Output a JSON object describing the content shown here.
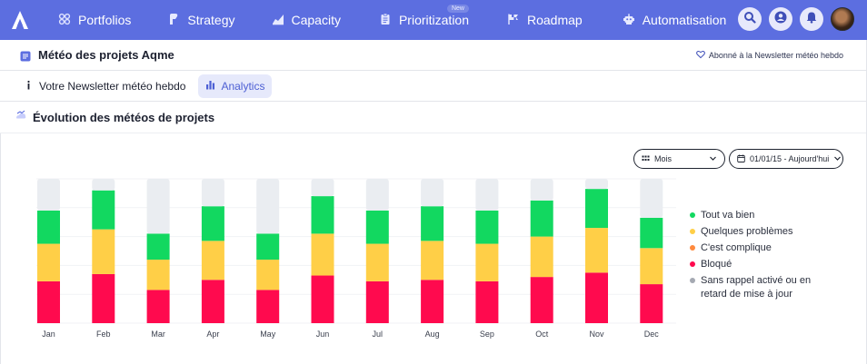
{
  "nav": {
    "items": [
      {
        "label": "Portfolios",
        "icon": "portfolios-icon"
      },
      {
        "label": "Strategy",
        "icon": "strategy-icon"
      },
      {
        "label": "Capacity",
        "icon": "capacity-icon"
      },
      {
        "label": "Prioritization",
        "icon": "prioritization-icon",
        "badge": "New"
      },
      {
        "label": "Roadmap",
        "icon": "roadmap-icon"
      },
      {
        "label": "Automatisation",
        "icon": "automatisation-icon"
      }
    ],
    "right_icons": [
      "search-icon",
      "user-icon",
      "bell-icon",
      "avatar"
    ]
  },
  "header": {
    "title": "Météo des projets Aqme",
    "subscribe_label": "Abonné à la Newsletter météo hebdo"
  },
  "tabs": [
    {
      "label": "Votre Newsletter météo hebdo",
      "icon": "info-icon",
      "active": false
    },
    {
      "label": "Analytics",
      "icon": "bar-chart-icon",
      "active": true
    }
  ],
  "section": {
    "title": "Évolution des météos de projets"
  },
  "filters": {
    "period": "Mois",
    "date_range": "01/01/15 - Aujourd'hui"
  },
  "colors": {
    "brand": "#5c6ee0",
    "green": "#12d860",
    "yellow": "#ffcf47",
    "orange": "#ff8a3d",
    "red": "#ff0a4e",
    "grey": "#eaedf1",
    "grey_dot": "#a5a9b2"
  },
  "chart_data": {
    "type": "bar",
    "stacked": true,
    "categories": [
      "Jan",
      "Feb",
      "Mar",
      "Apr",
      "May",
      "Jun",
      "Jul",
      "Aug",
      "Sep",
      "Oct",
      "Nov",
      "Dec"
    ],
    "ylim": [
      0,
      100
    ],
    "grid": true,
    "legend_position": "right",
    "series": [
      {
        "name": "Bloqué",
        "color": "#ff0a4e",
        "values": [
          29,
          34,
          23,
          30,
          23,
          33,
          29,
          30,
          29,
          32,
          35,
          27
        ]
      },
      {
        "name": "C'est complique",
        "color": "#ff8a3d",
        "values": [
          0,
          0,
          0,
          0,
          0,
          0,
          0,
          0,
          0,
          0,
          0,
          0
        ]
      },
      {
        "name": "Quelques problèmes",
        "color": "#ffcf47",
        "values": [
          26,
          31,
          21,
          27,
          21,
          29,
          26,
          27,
          26,
          28,
          31,
          25
        ]
      },
      {
        "name": "Tout va bien",
        "color": "#12d860",
        "values": [
          23,
          27,
          18,
          24,
          18,
          26,
          23,
          24,
          23,
          25,
          27,
          21
        ]
      },
      {
        "name": "Sans rappel activé ou en retard de mise à jour",
        "color": "#eaedf1",
        "values": [
          22,
          8,
          38,
          19,
          38,
          12,
          22,
          19,
          22,
          15,
          7,
          27
        ]
      }
    ]
  },
  "legend": [
    {
      "label": "Tout va bien",
      "color": "#12d860"
    },
    {
      "label": "Quelques problèmes",
      "color": "#ffcf47"
    },
    {
      "label": "C'est complique",
      "color": "#ff8a3d"
    },
    {
      "label": "Bloqué",
      "color": "#ff0a4e"
    },
    {
      "label": "Sans rappel activé ou en retard de mise à jour",
      "color": "#a5a9b2"
    }
  ]
}
